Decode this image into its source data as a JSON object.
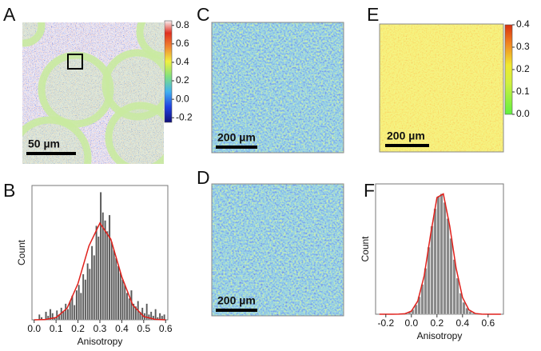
{
  "chart_data": [
    {
      "type": "image",
      "label": "A",
      "scale_bar": "50 µm",
      "clim": [
        -0.25,
        0.85
      ],
      "cticks": [
        0.8,
        0.6,
        0.4,
        0.2,
        {
          "value": 0,
          "label": "0.0"
        },
        -0.2
      ]
    },
    {
      "type": "histogram",
      "label": "B",
      "xlabel": "Anisotropy",
      "ylabel": "Count",
      "color": "#5a5a5a",
      "xlim": [
        -0.01,
        0.61
      ],
      "ylim": [
        0,
        100
      ],
      "xticks": [
        {
          "value": 0,
          "label": "0.0"
        },
        0.1,
        0.2,
        0.3,
        0.4,
        0.5,
        0.6
      ],
      "bins": [
        0.02,
        0.03,
        0.04,
        0.05,
        0.06,
        0.07,
        0.08,
        0.09,
        0.1,
        0.11,
        0.12,
        0.13,
        0.14,
        0.15,
        0.16,
        0.17,
        0.18,
        0.19,
        0.2,
        0.21,
        0.22,
        0.23,
        0.24,
        0.25,
        0.26,
        0.27,
        0.28,
        0.29,
        0.3,
        0.31,
        0.32,
        0.33,
        0.34,
        0.35,
        0.36,
        0.37,
        0.38,
        0.39,
        0.4,
        0.41,
        0.42,
        0.43,
        0.44,
        0.45,
        0.46,
        0.47,
        0.48,
        0.49,
        0.5,
        0.51,
        0.52,
        0.53,
        0.54,
        0.55,
        0.56,
        0.57,
        0.58,
        0.59,
        0.6
      ],
      "values": [
        4,
        2,
        0,
        6,
        3,
        8,
        5,
        2,
        7,
        4,
        9,
        6,
        12,
        8,
        14,
        18,
        11,
        22,
        26,
        20,
        34,
        30,
        42,
        38,
        55,
        48,
        70,
        62,
        95,
        80,
        74,
        66,
        78,
        58,
        52,
        46,
        40,
        35,
        30,
        26,
        20,
        16,
        22,
        12,
        10,
        14,
        6,
        9,
        5,
        12,
        4,
        6,
        3,
        8,
        2,
        5,
        3,
        4
      ],
      "fit": {
        "color": "#e0201b",
        "x": [
          0,
          0.05,
          0.1,
          0.15,
          0.2,
          0.25,
          0.3,
          0.35,
          0.4,
          0.45,
          0.5,
          0.55,
          0.6
        ],
        "values": [
          0,
          0.2,
          1.7,
          8.5,
          27,
          55,
          72,
          60,
          32,
          11,
          2.5,
          0.4,
          0
        ]
      }
    },
    {
      "type": "image",
      "label": "C",
      "scale_bar": "200 µm"
    },
    {
      "type": "image",
      "label": "D",
      "scale_bar": "200 µm"
    },
    {
      "type": "image",
      "label": "E",
      "scale_bar": "200 µm",
      "clim": [
        0,
        0.4
      ],
      "cticks": [
        0.4,
        0.3,
        0.2,
        0.1,
        {
          "value": 0,
          "label": "0.0"
        }
      ]
    },
    {
      "type": "histogram",
      "label": "F",
      "xlabel": "Anisotropy",
      "ylabel": "Count",
      "color": "#8a8a8a",
      "xlim": [
        -0.28,
        0.72
      ],
      "ylim": [
        0,
        105
      ],
      "xticks": [
        -0.2,
        {
          "value": 0,
          "label": "0.0"
        },
        0.2,
        0.4,
        0.6
      ],
      "bins": [
        -0.1,
        -0.075,
        -0.05,
        -0.025,
        0,
        0.025,
        0.05,
        0.075,
        0.1,
        0.125,
        0.15,
        0.175,
        0.2,
        0.225,
        0.25,
        0.275,
        0.3,
        0.325,
        0.35,
        0.375,
        0.4,
        0.425,
        0.45,
        0.475,
        0.5,
        0.525,
        0.55
      ],
      "values": [
        0.1,
        0.3,
        0.7,
        1.7,
        3.7,
        7.5,
        14,
        24,
        37,
        54,
        71,
        85,
        95,
        97,
        90,
        77,
        61,
        44,
        29,
        17,
        9.6,
        4.9,
        2.3,
        1,
        0.4,
        0.1
      ],
      "fit": {
        "color": "#e0201b",
        "x": [
          -0.25,
          -0.2,
          -0.15,
          -0.1,
          -0.05,
          0,
          0.05,
          0.1,
          0.15,
          0.2,
          0.25,
          0.3,
          0.35,
          0.4,
          0.45,
          0.5,
          0.55,
          0.6,
          0.65,
          0.7
        ],
        "values": [
          0,
          0,
          0,
          0.05,
          0.4,
          2.5,
          10.6,
          31,
          64,
          94,
          97,
          71,
          37,
          13.5,
          3.5,
          0.6,
          0.1,
          0,
          0,
          0
        ]
      }
    }
  ]
}
